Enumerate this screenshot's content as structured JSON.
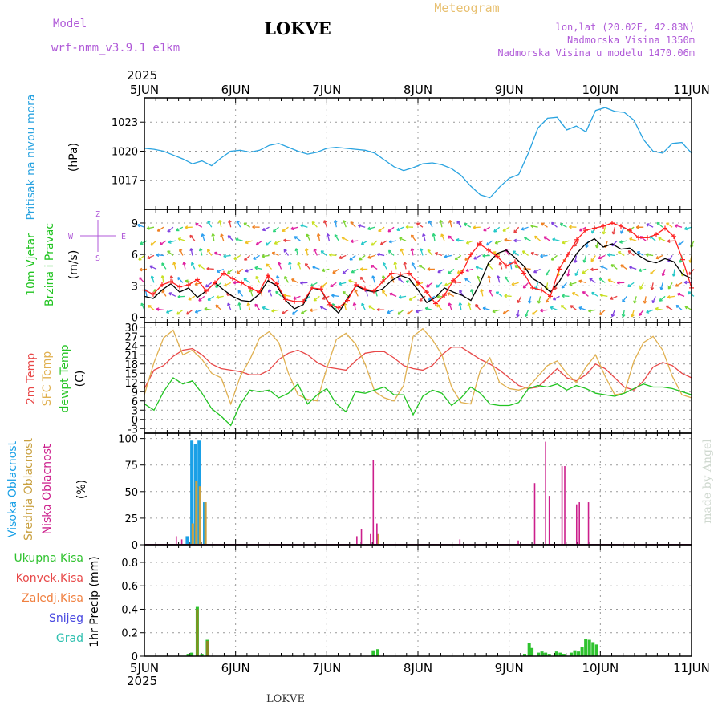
{
  "header": {
    "model_label": "Model",
    "model_name": "wrf-nmm_v3.9.1 e1km",
    "station": "LOKVE",
    "meteogram": "Meteogram",
    "lonlat": "lon,lat (20.02E, 42.83N)",
    "altitude": "Nadmorska Visina 1350m",
    "model_altitude": "Nadmorska Visina u modelu 1470.06m"
  },
  "footer": {
    "station": "LOKVE",
    "credit": "made by Angel"
  },
  "time_axis": {
    "year": "2025",
    "labels": [
      "5JUN",
      "6JUN",
      "7JUN",
      "8JUN",
      "9JUN",
      "10JUN",
      "11JUN"
    ]
  },
  "colors": {
    "pressure": "#29a3e0",
    "temp2m": "#e84848",
    "sfc_temp": "#e0b050",
    "dewpt": "#22c422",
    "cloud_high": "#1aa0e6",
    "cloud_mid": "#c8a040",
    "cloud_low": "#cc1f8c",
    "rain_total": "#2ec22e",
    "rain_conv": "#8a8a20",
    "wind_speed": "#000000",
    "wind_gust": "#ff2020"
  },
  "chart_data": [
    {
      "type": "line",
      "panel": "pressure",
      "ylabel_main": "Pritisak na nivou mora",
      "ylabel_unit": "(hPa)",
      "yticks": [
        1017,
        1020,
        1023
      ],
      "ylim": [
        1014,
        1025.5
      ],
      "grid": true,
      "series": [
        {
          "values": [
            1020.3,
            1020.2,
            1020.0,
            1019.6,
            1019.2,
            1018.7,
            1019.0,
            1018.5,
            1019.3,
            1020.0,
            1020.1,
            1019.9,
            1020.1,
            1020.6,
            1020.8,
            1020.4,
            1020.0,
            1019.7,
            1019.9,
            1020.3,
            1020.4,
            1020.3,
            1020.2,
            1020.1,
            1019.8,
            1019.1,
            1018.4,
            1018.0,
            1018.3,
            1018.7,
            1018.8,
            1018.6,
            1018.2,
            1017.5,
            1016.4,
            1015.5,
            1015.2,
            1016.3,
            1017.2,
            1017.6,
            1019.8,
            1022.4,
            1023.4,
            1023.5,
            1022.2,
            1022.6,
            1022.0,
            1024.2,
            1024.5,
            1024.1,
            1024.0,
            1023.2,
            1021.2,
            1020.0,
            1019.8,
            1020.8,
            1020.9,
            1019.8
          ]
        }
      ]
    },
    {
      "type": "line",
      "panel": "wind",
      "ylabel_main": "10m Vjetar",
      "ylabel_sub": "Brzina i Pravac",
      "ylabel_unit": "(m/s)",
      "direction_labels": [
        "Z",
        "W",
        "E",
        "S"
      ],
      "yticks": [
        0,
        3,
        6,
        9
      ],
      "ylim": [
        -0.5,
        10.3
      ],
      "grid": true,
      "series": [
        {
          "name": "speed",
          "values": [
            2.0,
            1.8,
            2.6,
            3.2,
            2.4,
            2.8,
            1.9,
            2.5,
            3.3,
            2.6,
            2.0,
            1.6,
            1.5,
            2.2,
            3.5,
            3.0,
            1.6,
            0.8,
            1.2,
            2.8,
            2.6,
            1.2,
            0.4,
            1.8,
            3.0,
            2.6,
            2.4,
            2.7,
            3.5,
            4.0,
            3.7,
            2.6,
            1.4,
            1.9,
            2.8,
            2.4,
            2.1,
            1.6,
            3.2,
            5.2,
            6.1,
            6.4,
            5.7,
            4.9,
            3.7,
            3.2,
            2.4,
            3.4,
            4.8,
            6.1,
            7.0,
            7.5,
            6.7,
            7.0,
            6.5,
            6.6,
            5.9,
            5.4,
            5.2,
            5.6,
            5.3,
            4.1,
            3.7
          ]
        },
        {
          "name": "gust",
          "values": [
            2.6,
            2.2,
            3.1,
            3.4,
            2.9,
            3.1,
            3.6,
            2.5,
            3.3,
            4.2,
            3.7,
            3.3,
            2.8,
            2.4,
            4.0,
            3.2,
            1.7,
            1.5,
            1.5,
            2.8,
            2.7,
            1.2,
            0.9,
            1.6,
            3.1,
            2.7,
            2.5,
            3.4,
            4.2,
            4.1,
            4.2,
            3.3,
            2.4,
            1.3,
            2.1,
            3.5,
            4.3,
            6.0,
            7.0,
            6.4,
            5.8,
            4.9,
            5.3,
            4.2,
            2.8,
            2.6,
            2.0,
            4.6,
            6.0,
            7.4,
            8.3,
            8.5,
            8.7,
            9.0,
            8.7,
            8.3,
            7.6,
            7.6,
            7.9,
            8.5,
            7.7,
            5.5,
            2.8
          ]
        }
      ]
    },
    {
      "type": "line",
      "panel": "temperature",
      "ylabel_lines": [
        "2m Temp",
        "SFC Temp",
        "dewpt Temp"
      ],
      "ylabel_unit": "(C)",
      "yticks": [
        -3,
        0,
        3,
        6,
        9,
        12,
        15,
        18,
        21,
        24,
        27,
        30
      ],
      "ylim": [
        -4.5,
        31.5
      ],
      "grid": true,
      "series": [
        {
          "name": "2m",
          "values": [
            10.0,
            16.0,
            17.5,
            20.5,
            22.5,
            23.0,
            21.0,
            18.0,
            16.5,
            16.0,
            15.5,
            14.5,
            14.5,
            16.0,
            19.5,
            21.5,
            22.5,
            21.0,
            18.5,
            17.0,
            16.5,
            16.0,
            19.0,
            21.5,
            22.0,
            22.0,
            20.0,
            17.5,
            16.5,
            16.0,
            17.5,
            21.0,
            23.5,
            23.5,
            21.5,
            19.5,
            18.0,
            16.0,
            13.5,
            11.0,
            10.0,
            10.5,
            13.5,
            16.5,
            13.5,
            12.5,
            14.5,
            18.0,
            16.5,
            13.5,
            10.5,
            9.5,
            12.5,
            17.0,
            18.5,
            17.5,
            15.0,
            13.5
          ]
        },
        {
          "name": "SFC",
          "values": [
            8.0,
            18.5,
            26.5,
            29.0,
            21.0,
            22.5,
            19.5,
            15.0,
            13.5,
            5.0,
            14.0,
            19.5,
            26.5,
            28.5,
            25.0,
            15.0,
            8.0,
            6.5,
            6.0,
            16.5,
            26.0,
            28.0,
            24.5,
            18.0,
            9.0,
            7.0,
            6.0,
            11.0,
            27.0,
            29.5,
            26.0,
            21.0,
            10.5,
            5.5,
            5.0,
            16.0,
            20.0,
            12.0,
            10.0,
            9.5,
            10.5,
            14.0,
            17.5,
            19.0,
            15.0,
            12.0,
            17.0,
            21.0,
            14.0,
            8.0,
            8.5,
            19.0,
            25.0,
            27.0,
            22.5,
            14.0,
            8.0,
            7.0
          ]
        },
        {
          "name": "dewpt",
          "values": [
            5.0,
            3.0,
            9.0,
            13.5,
            11.5,
            12.5,
            8.5,
            3.5,
            1.0,
            -2.0,
            5.0,
            9.5,
            9.0,
            9.5,
            7.0,
            8.5,
            11.5,
            5.0,
            8.0,
            10.0,
            5.0,
            2.5,
            9.0,
            8.5,
            9.5,
            10.5,
            8.0,
            8.0,
            1.5,
            7.5,
            9.5,
            8.5,
            4.5,
            7.0,
            10.5,
            8.5,
            5.0,
            4.5,
            4.5,
            5.5,
            10.0,
            11.0,
            10.5,
            11.5,
            9.5,
            11.0,
            10.0,
            8.5,
            8.0,
            7.5,
            8.5,
            10.0,
            11.5,
            10.5,
            10.5,
            10.0,
            9.0,
            8.0
          ]
        }
      ]
    },
    {
      "type": "bar",
      "panel": "clouds",
      "ylabel_lines": [
        "Visoka Oblacnost",
        "Srednja Oblacnost",
        "Niska Oblacnost"
      ],
      "ylabel_unit": "(%)",
      "yticks": [
        0,
        25,
        50,
        75,
        100
      ],
      "ylim": [
        0,
        105
      ],
      "grid": true,
      "series": [
        {
          "name": "high",
          "x": [
            5.47,
            5.52,
            5.56,
            5.6,
            5.66
          ],
          "values": [
            8,
            98,
            95,
            98,
            40
          ]
        },
        {
          "name": "mid",
          "x": [
            5.53,
            5.57,
            5.61,
            5.67,
            7.56
          ],
          "values": [
            20,
            60,
            55,
            40,
            10
          ]
        },
        {
          "name": "low",
          "x": [
            5.35,
            5.41,
            7.33,
            7.38,
            7.48,
            7.51,
            7.55,
            8.46,
            9.1,
            9.28,
            9.4,
            9.44,
            9.58,
            9.61,
            9.74,
            9.77,
            9.87
          ],
          "values": [
            8,
            5,
            8,
            15,
            10,
            80,
            20,
            5,
            4,
            58,
            97,
            46,
            74,
            74,
            38,
            40,
            40
          ]
        }
      ]
    },
    {
      "type": "bar",
      "panel": "precip",
      "legend": [
        "Ukupna Kisa",
        "Konvek.Kisa",
        "Zaledj.Kisa",
        "Snijeg",
        "Grad"
      ],
      "ylabel_unit": "1hr Precip (mm)",
      "yticks": [
        0,
        0.2,
        0.4,
        0.6,
        0.8
      ],
      "ylim": [
        0,
        0.95
      ],
      "grid": true,
      "series": [
        {
          "name": "total",
          "x": [
            5.48,
            5.52,
            5.58,
            5.63,
            5.69,
            7.51,
            7.56,
            9.17,
            9.22,
            9.25,
            9.32,
            9.36,
            9.4,
            9.44,
            9.52,
            9.56,
            9.6,
            9.68,
            9.72,
            9.76,
            9.8,
            9.84,
            9.88,
            9.92,
            9.96
          ],
          "values": [
            0.02,
            0.03,
            0.42,
            0.02,
            0.14,
            0.05,
            0.06,
            0.02,
            0.11,
            0.07,
            0.03,
            0.04,
            0.03,
            0.02,
            0.04,
            0.03,
            0.02,
            0.03,
            0.05,
            0.04,
            0.08,
            0.15,
            0.14,
            0.12,
            0.1
          ]
        },
        {
          "name": "convective",
          "x": [
            5.58,
            5.69
          ],
          "values": [
            0.4,
            0.13
          ]
        }
      ]
    }
  ]
}
